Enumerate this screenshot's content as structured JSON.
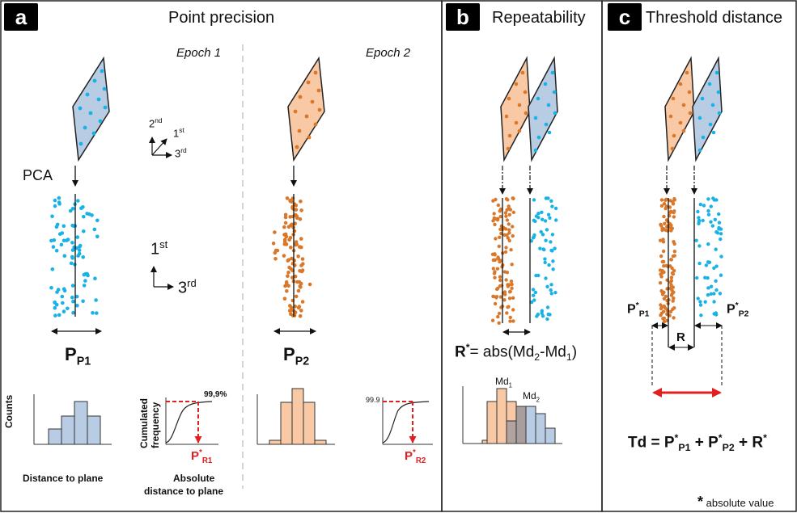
{
  "panels": {
    "a": {
      "badge": "a",
      "title": "Point precision",
      "epoch1": "Epoch 1",
      "epoch2": "Epoch 2",
      "pca": "PCA",
      "axis_2nd": "2",
      "axis_2nd_sup": "nd",
      "axis_1st": "1",
      "axis_1st_sup": "st",
      "axis_3rd": "3",
      "axis_3rd_sup": "rd",
      "big_1st": "1",
      "big_1st_sup": "st",
      "big_3rd": "3",
      "big_3rd_sup": "rd",
      "pp1_main": "P",
      "pp1_sub": "P1",
      "pp2_main": "P",
      "pp2_sub": "P2",
      "counts_label": "Counts",
      "dist_plane": "Distance to plane",
      "cum_freq_1": "Cumulated",
      "cum_freq_2": "frequency",
      "abs_dist_1": "Absolute",
      "abs_dist_2": "distance to plane",
      "pct_label": "99,9%",
      "pr1_main": "P",
      "pr1_sup": "*",
      "pr1_sub": "R1",
      "pct2_label": "99.9",
      "pr2_main": "P",
      "pr2_sup": "*",
      "pr2_sub": "R2"
    },
    "b": {
      "badge": "b",
      "title": "Repeatability",
      "eq_r": "R",
      "eq_star": "*",
      "eq_rest": "= abs(Md",
      "eq_sub2": "2",
      "eq_minus": "-Md",
      "eq_sub1": "1",
      "eq_close": ")",
      "md1": "Md",
      "md1_sub": "1",
      "md2": "Md",
      "md2_sub": "2"
    },
    "c": {
      "badge": "c",
      "title": "Threshold distance",
      "pp1_main": "P",
      "pp1_sup": "*",
      "pp1_sub": "P1",
      "pp2_main": "P",
      "pp2_sup": "*",
      "pp2_sub": "P2",
      "r_label": "R",
      "td_1": "Td = P",
      "td_sup1": "*",
      "td_sub1": "P1",
      "td_2": " + P",
      "td_sup2": "*",
      "td_sub2": "P2",
      "td_3": " + R",
      "td_sup3": "*",
      "footnote_star": "*",
      "footnote": " absolute value"
    }
  },
  "colors": {
    "blue_dot": "#19b2e6",
    "orange_dot": "#d9782a",
    "blue_fill": "#b8cce4",
    "orange_fill": "#f8c9a4",
    "red": "#e02020",
    "dashed_gray": "#aaaaaa"
  }
}
